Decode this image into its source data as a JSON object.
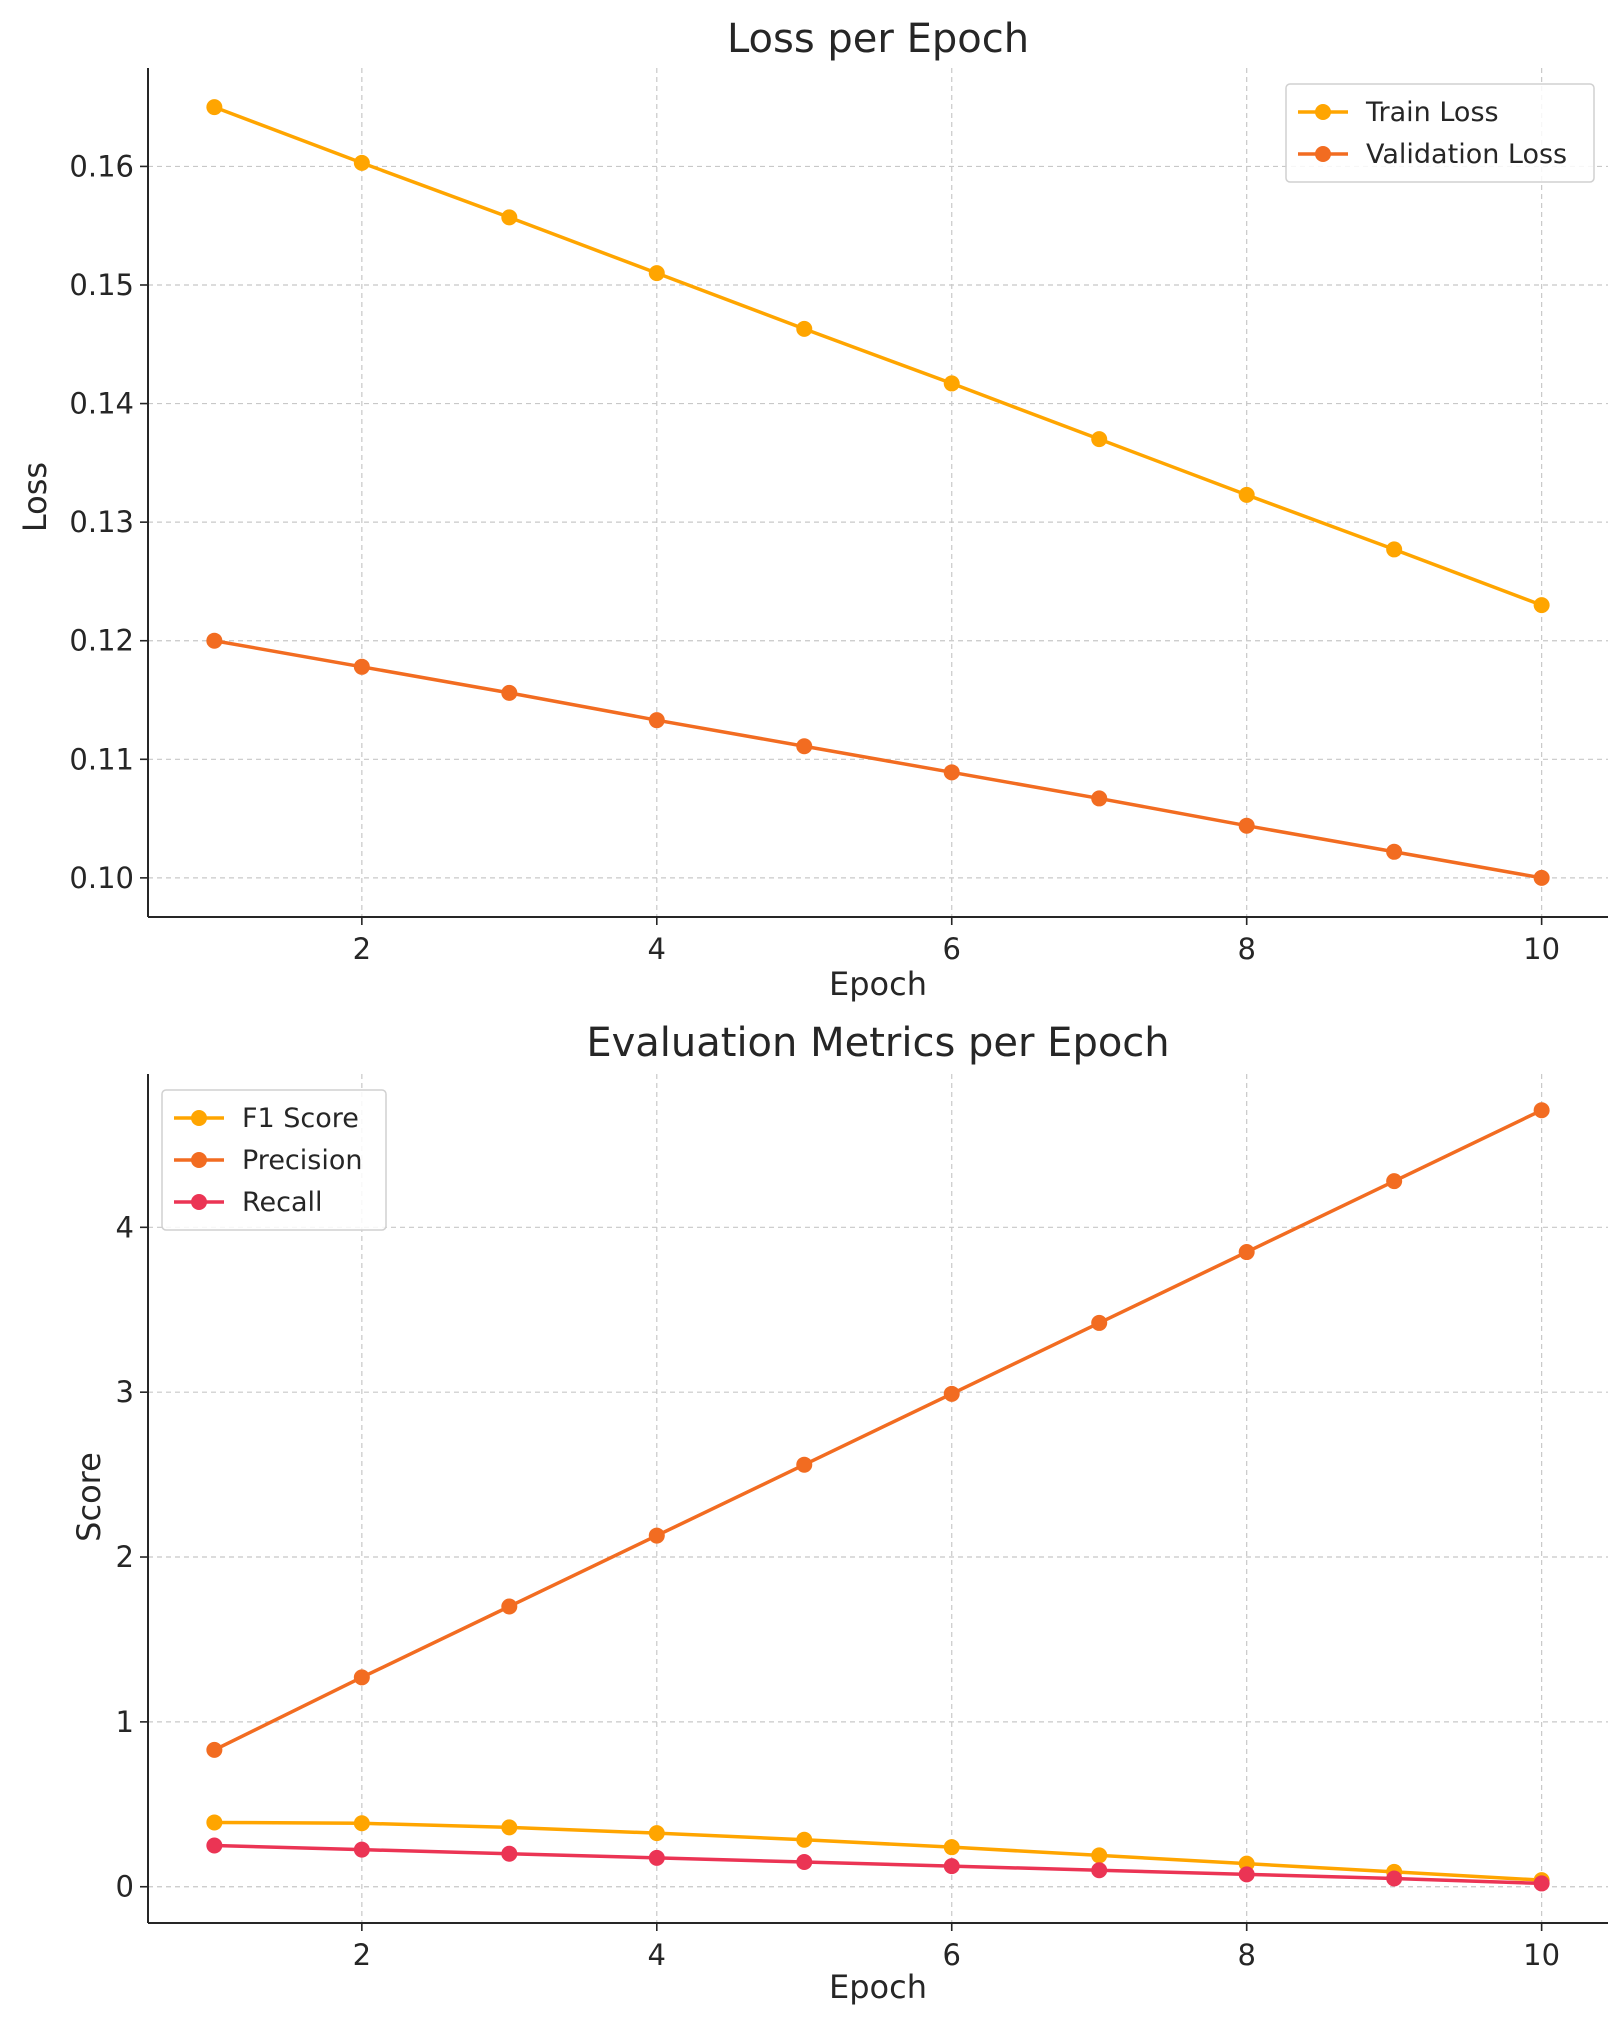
{
  "chart_data": [
    {
      "type": "line",
      "title": "Loss per Epoch",
      "xlabel": "Epoch",
      "ylabel": "Loss",
      "xlim": [
        0.55,
        10.45
      ],
      "ylim": [
        0.0967,
        0.1683
      ],
      "xticks": [
        2,
        4,
        6,
        8,
        10
      ],
      "xtick_labels": [
        "2",
        "4",
        "6",
        "8",
        "10"
      ],
      "yticks": [
        0.1,
        0.11,
        0.12,
        0.13,
        0.14,
        0.15,
        0.16
      ],
      "ytick_labels": [
        "0.10",
        "0.11",
        "0.12",
        "0.13",
        "0.14",
        "0.15",
        "0.16"
      ],
      "grid": true,
      "legend_position": "top-right",
      "x": [
        1,
        2,
        3,
        4,
        5,
        6,
        7,
        8,
        9,
        10
      ],
      "series": [
        {
          "name": "Train Loss",
          "color": "#FFA500",
          "values": [
            0.165,
            0.1603,
            0.1557,
            0.151,
            0.1463,
            0.1417,
            0.137,
            0.1323,
            0.1277,
            0.123
          ]
        },
        {
          "name": "Validation Loss",
          "color": "#F26C21",
          "values": [
            0.12,
            0.1178,
            0.1156,
            0.1133,
            0.1111,
            0.1089,
            0.1067,
            0.1044,
            0.1022,
            0.1
          ]
        }
      ]
    },
    {
      "type": "line",
      "title": "Evaluation Metrics per Epoch",
      "xlabel": "Epoch",
      "ylabel": "Score",
      "xlim": [
        0.55,
        10.45
      ],
      "ylim": [
        -0.22,
        4.93
      ],
      "xticks": [
        2,
        4,
        6,
        8,
        10
      ],
      "xtick_labels": [
        "2",
        "4",
        "6",
        "8",
        "10"
      ],
      "yticks": [
        0,
        1,
        2,
        3,
        4
      ],
      "ytick_labels": [
        "0",
        "1",
        "2",
        "3",
        "4"
      ],
      "grid": true,
      "legend_position": "top-left",
      "x": [
        1,
        2,
        3,
        4,
        5,
        6,
        7,
        8,
        9,
        10
      ],
      "series": [
        {
          "name": "F1 Score",
          "color": "#FFA500",
          "values": [
            0.39,
            0.385,
            0.36,
            0.325,
            0.285,
            0.24,
            0.19,
            0.14,
            0.09,
            0.04
          ]
        },
        {
          "name": "Precision",
          "color": "#F26C21",
          "values": [
            0.83,
            1.27,
            1.7,
            2.13,
            2.56,
            2.99,
            3.42,
            3.85,
            4.28,
            4.71
          ]
        },
        {
          "name": "Recall",
          "color": "#EB3454",
          "values": [
            0.25,
            0.225,
            0.2,
            0.175,
            0.15,
            0.125,
            0.1,
            0.075,
            0.05,
            0.02
          ]
        }
      ]
    }
  ]
}
